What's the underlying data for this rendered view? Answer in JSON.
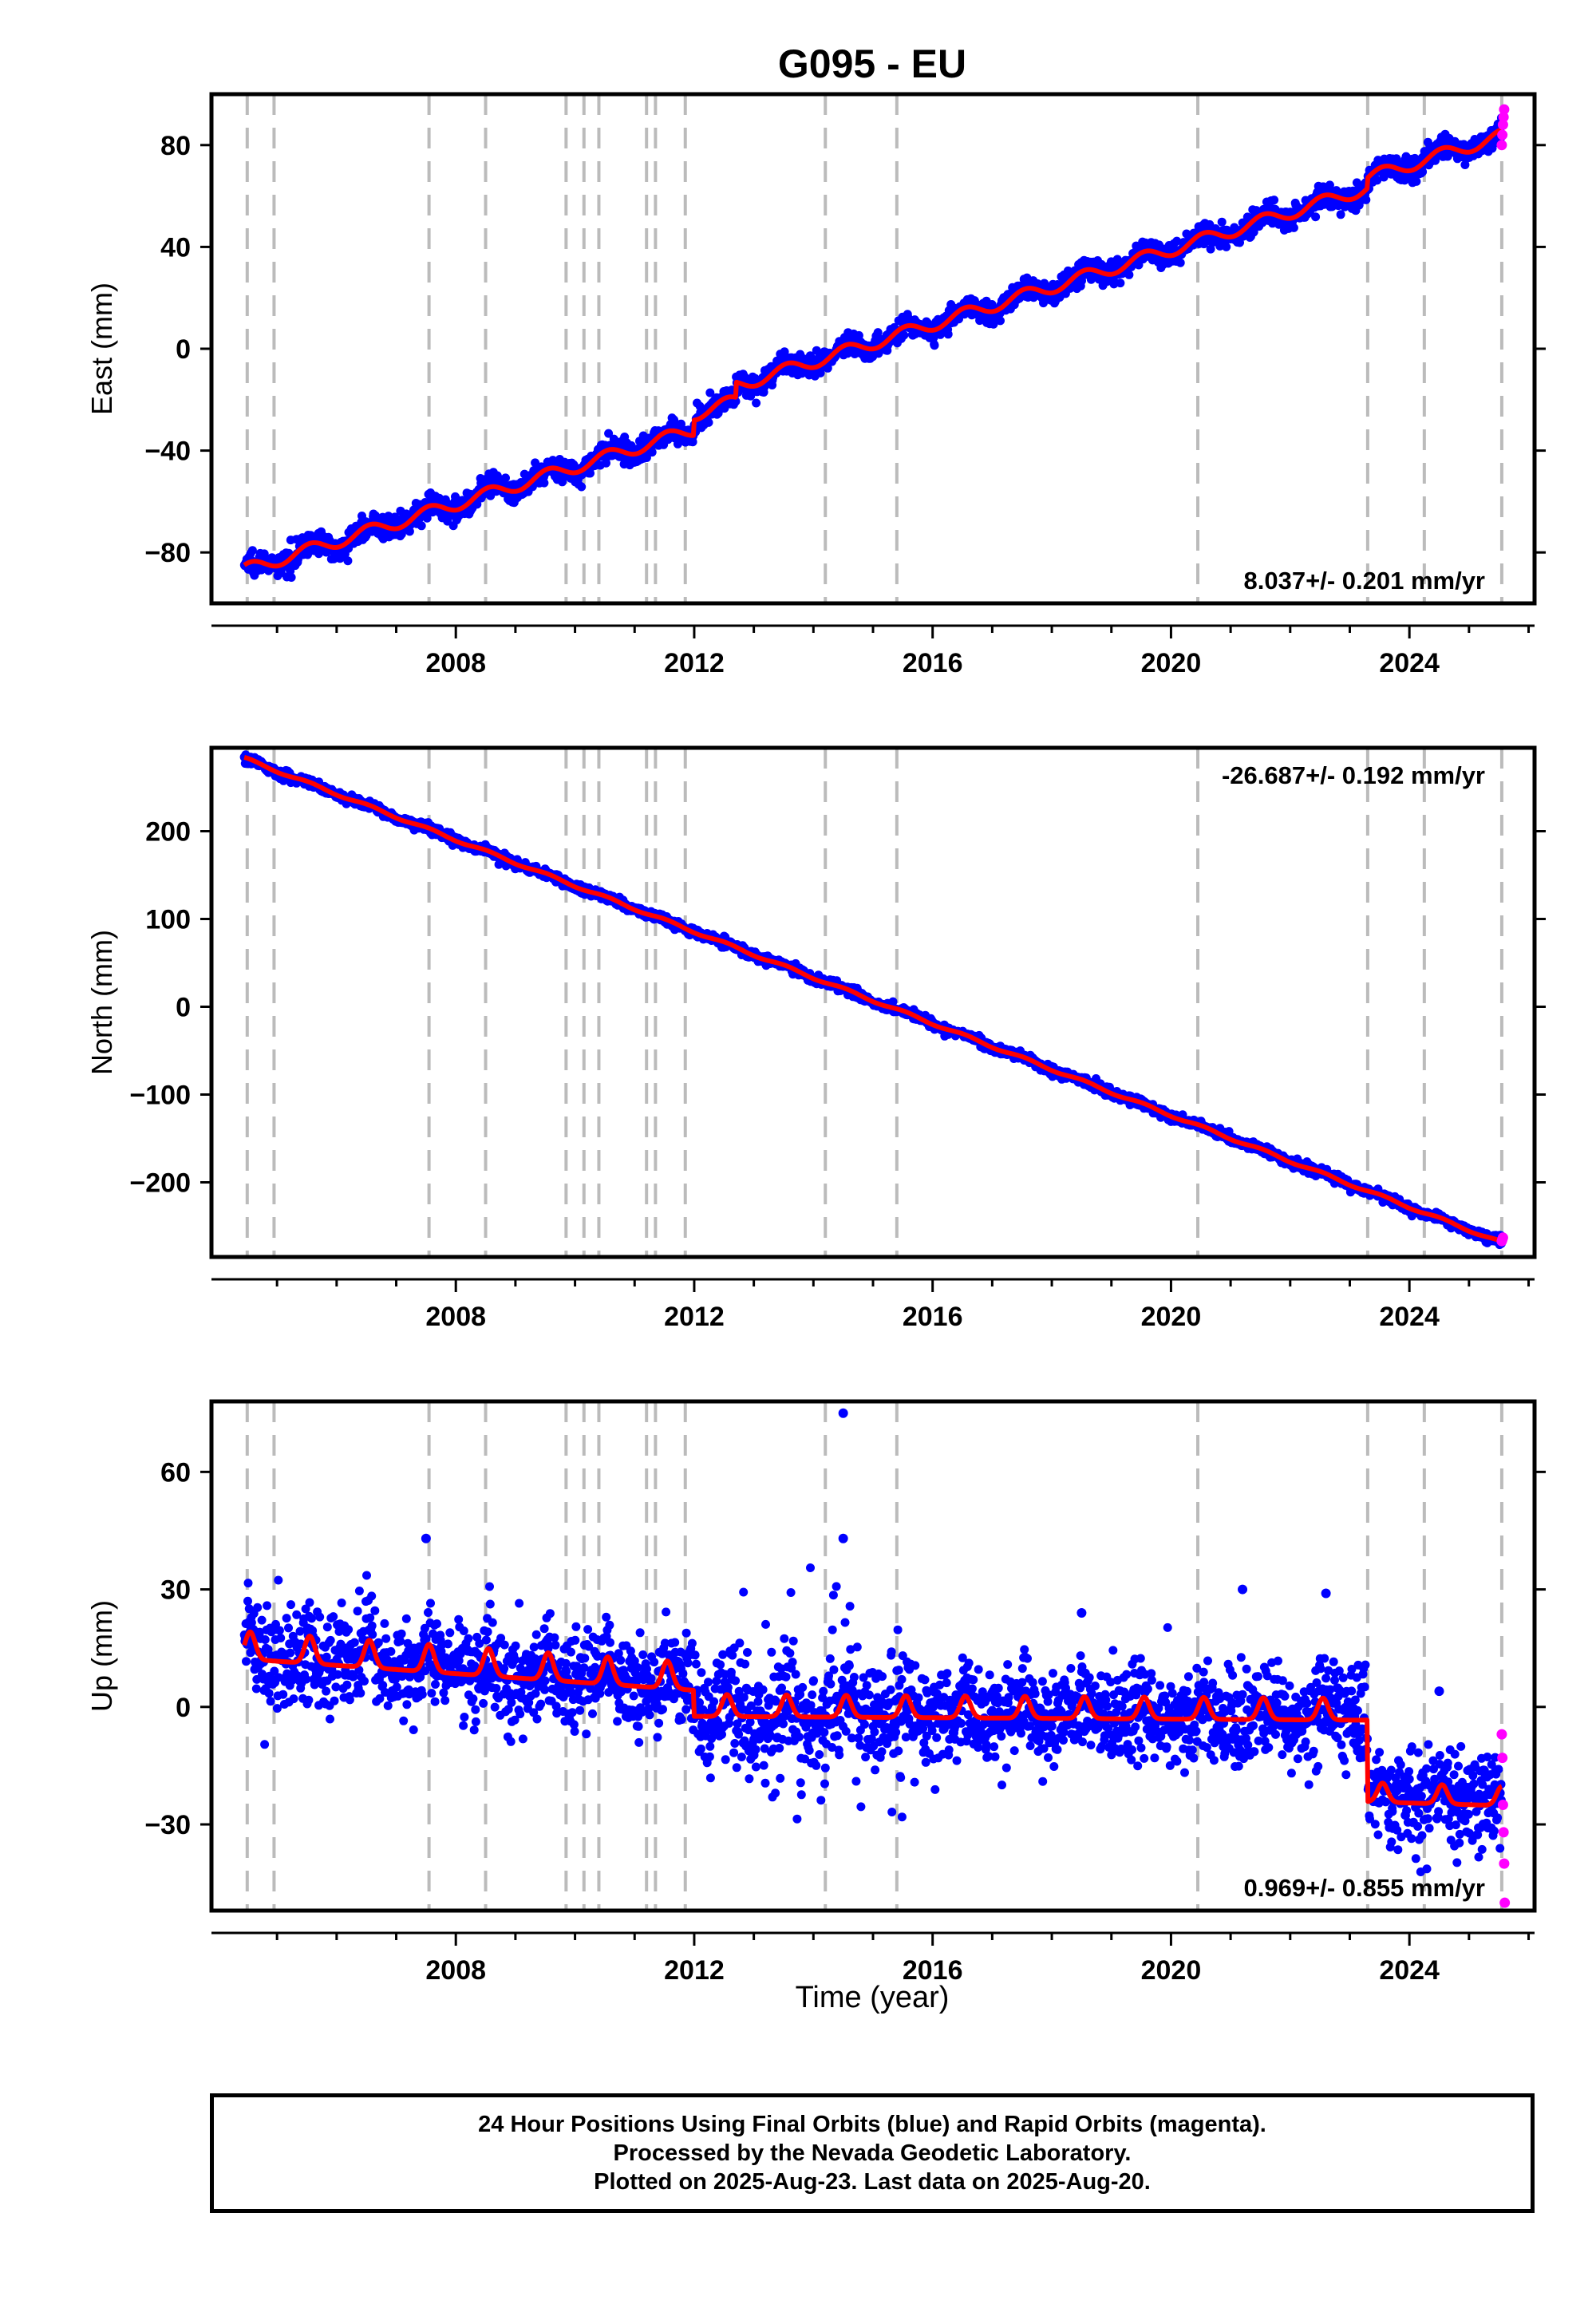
{
  "title": "G095 - EU",
  "xlabel": "Time (year)",
  "footer": {
    "line1": "24 Hour Positions Using Final Orbits (blue) and Rapid Orbits (magenta).",
    "line2": "Processed by the Nevada Geodetic Laboratory.",
    "line3": "Plotted on 2025-Aug-23. Last data on 2025-Aug-20."
  },
  "colors": {
    "final": "#0000ff",
    "rapid": "#ff00ff",
    "model": "#ff0000",
    "events": "#bbbbbb"
  },
  "chart_data": [
    {
      "type": "scatter",
      "ylabel": "East (mm)",
      "xlim": [
        2003.9,
        2026.1
      ],
      "ylim": [
        -100,
        100
      ],
      "yticks": [
        -80,
        -40,
        0,
        40,
        80
      ],
      "xticks": [
        2008,
        2012,
        2016,
        2020,
        2024
      ],
      "annotation": "8.037+/- 0.201 mm/yr",
      "annotation_position": "bottom-right",
      "trend": {
        "rate": 8.037,
        "start": [
          2004.45,
          -87
        ],
        "end": [
          2025.6,
          84
        ]
      },
      "seasonal_amp": 2.5,
      "steps": [
        [
          2012.0,
          6
        ],
        [
          2012.7,
          6
        ],
        [
          2023.3,
          4
        ]
      ],
      "scatter_noise": 2.2,
      "rapid": {
        "x_start": 2025.55,
        "y_values": [
          80,
          84,
          88,
          91,
          94
        ]
      }
    },
    {
      "type": "scatter",
      "ylabel": "North (mm)",
      "xlim": [
        2003.9,
        2026.1
      ],
      "ylim": [
        -285,
        295
      ],
      "yticks": [
        -200,
        -100,
        0,
        100,
        200
      ],
      "xticks": [
        2008,
        2012,
        2016,
        2020,
        2024
      ],
      "annotation": "-26.687+/- 0.192 mm/yr",
      "annotation_position": "top-right",
      "trend": {
        "rate": -26.687,
        "start": [
          2004.45,
          283
        ],
        "end": [
          2025.6,
          -270
        ]
      },
      "seasonal_amp": 1.5,
      "steps": [],
      "scatter_noise": 2.5,
      "rapid": {
        "x_start": 2025.55,
        "y_values": [
          -267,
          -265,
          -263
        ]
      }
    },
    {
      "type": "scatter",
      "ylabel": "Up (mm)",
      "xlim": [
        2003.9,
        2026.1
      ],
      "ylim": [
        -52,
        78
      ],
      "yticks": [
        -30,
        0,
        30,
        60
      ],
      "xticks": [
        2008,
        2012,
        2016,
        2020,
        2024
      ],
      "annotation": "0.969+/- 0.855 mm/yr",
      "annotation_position": "bottom-right",
      "segments": [
        {
          "x0": 2004.45,
          "x1": 2012.0,
          "y0": 14,
          "y1": 6,
          "amp": 5
        },
        {
          "x0": 2012.0,
          "x1": 2023.3,
          "y0": -1,
          "y1": -2,
          "amp": 4
        },
        {
          "x0": 2023.3,
          "x1": 2025.6,
          "y0": -23,
          "y1": -24,
          "amp": 3.5
        }
      ],
      "scatter_noise": 6,
      "outliers": [
        [
          2014.5,
          75
        ],
        [
          2014.5,
          43
        ],
        [
          2007.5,
          43
        ],
        [
          2021.2,
          30
        ],
        [
          2022.6,
          29
        ],
        [
          2018.5,
          24
        ],
        [
          2024.5,
          4
        ]
      ],
      "rapid": {
        "x_start": 2025.55,
        "y_values": [
          -7,
          -13,
          -25,
          -32,
          -40,
          -50
        ]
      }
    }
  ],
  "event_years": [
    2004.5,
    2004.95,
    2007.55,
    2008.5,
    2009.85,
    2010.15,
    2010.4,
    2011.2,
    2011.35,
    2011.85,
    2014.2,
    2015.4,
    2020.45,
    2023.3,
    2024.25,
    2025.55
  ]
}
